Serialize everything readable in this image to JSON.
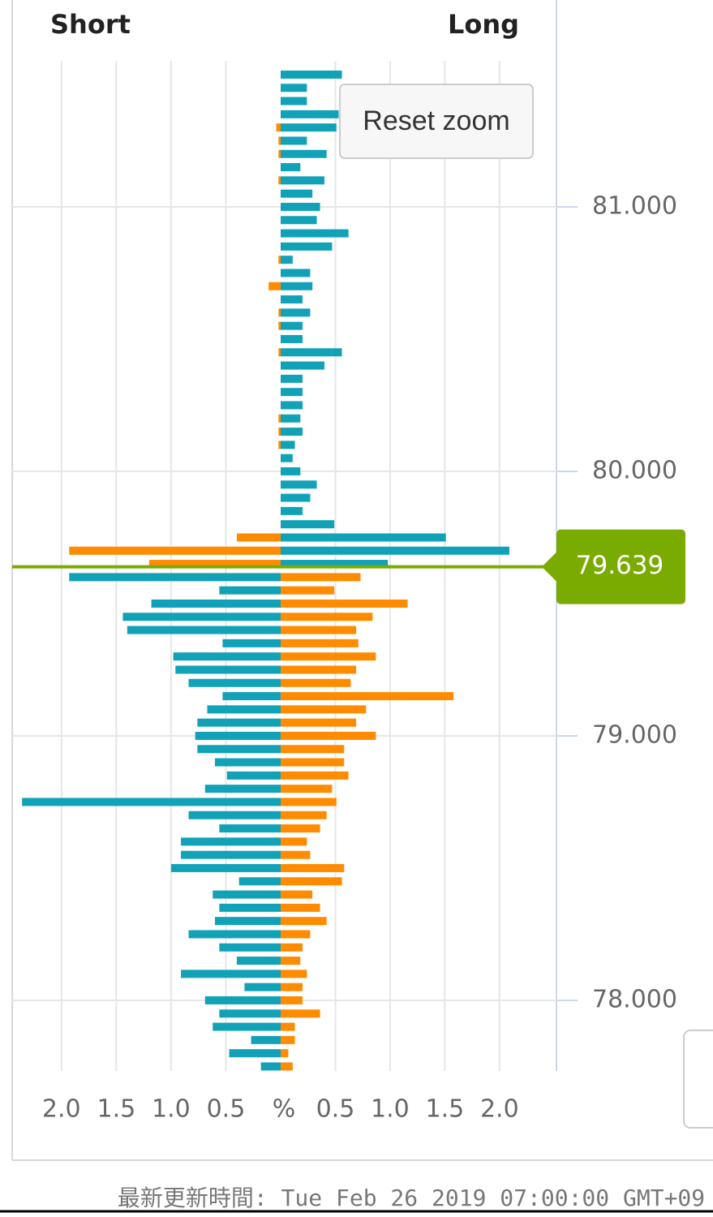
{
  "chart_data": {
    "type": "bar",
    "orientation": "horizontal",
    "prices": [
      81.5,
      81.45,
      81.4,
      81.35,
      81.3,
      81.25,
      81.2,
      81.15,
      81.1,
      81.05,
      81.0,
      80.95,
      80.9,
      80.85,
      80.8,
      80.75,
      80.7,
      80.65,
      80.6,
      80.55,
      80.5,
      80.45,
      80.4,
      80.35,
      80.3,
      80.25,
      80.2,
      80.15,
      80.1,
      80.05,
      80.0,
      79.95,
      79.9,
      79.85,
      79.8,
      79.75,
      79.7,
      79.65,
      79.6,
      79.55,
      79.5,
      79.45,
      79.4,
      79.35,
      79.3,
      79.25,
      79.2,
      79.15,
      79.1,
      79.05,
      79.0,
      78.95,
      78.9,
      78.85,
      78.8,
      78.75,
      78.7,
      78.65,
      78.6,
      78.55,
      78.5,
      78.45,
      78.4,
      78.35,
      78.3,
      78.25,
      78.2,
      78.15,
      78.1,
      78.05,
      78.0,
      77.95,
      77.9,
      77.85,
      77.8,
      77.75
    ],
    "series": [
      {
        "name": "Short",
        "side": "left",
        "color_above": "#ff8c00",
        "color_below": "#12a2b8",
        "values": [
          0,
          0,
          0,
          0,
          0.04,
          0.02,
          0.02,
          0,
          0.02,
          0,
          0,
          0,
          0,
          0,
          0.02,
          0,
          0.11,
          0,
          0.02,
          0.02,
          0,
          0.02,
          0,
          0,
          0,
          0,
          0.02,
          0.02,
          0.02,
          0,
          0,
          0,
          0,
          0,
          0,
          0.4,
          1.93,
          1.2,
          1.93,
          0.56,
          1.18,
          1.44,
          1.4,
          0.53,
          0.98,
          0.96,
          0.84,
          0.53,
          0.67,
          0.76,
          0.78,
          0.76,
          0.6,
          0.49,
          0.69,
          2.36,
          0.84,
          0.56,
          0.91,
          0.91,
          1.0,
          0.38,
          0.62,
          0.56,
          0.6,
          0.84,
          0.56,
          0.4,
          0.91,
          0.33,
          0.69,
          0.56,
          0.62,
          0.27,
          0.47,
          0.18
        ]
      },
      {
        "name": "Long",
        "side": "right",
        "color_above": "#12a2b8",
        "color_below": "#ff8c00",
        "values": [
          0.56,
          0.24,
          0.24,
          0.53,
          0.51,
          0.24,
          0.42,
          0.18,
          0.4,
          0.29,
          0.36,
          0.33,
          0.62,
          0.47,
          0.11,
          0.27,
          0.29,
          0.2,
          0.27,
          0.2,
          0.2,
          0.56,
          0.4,
          0.2,
          0.2,
          0.2,
          0.18,
          0.2,
          0.13,
          0.11,
          0.18,
          0.33,
          0.27,
          0.2,
          0.49,
          1.51,
          2.09,
          0.98,
          0.73,
          0.49,
          1.16,
          0.84,
          0.69,
          0.71,
          0.87,
          0.69,
          0.64,
          1.58,
          0.78,
          0.69,
          0.87,
          0.58,
          0.58,
          0.62,
          0.47,
          0.51,
          0.42,
          0.36,
          0.24,
          0.27,
          0.58,
          0.56,
          0.29,
          0.36,
          0.42,
          0.27,
          0.2,
          0.18,
          0.24,
          0.2,
          0.2,
          0.36,
          0.13,
          0.13,
          0.07,
          0.11
        ]
      }
    ],
    "current_price": 79.639,
    "price_color": "#7aab00",
    "short_xlim": [
      0,
      2.45
    ],
    "long_xlim": [
      0,
      2.52
    ],
    "short_ticks": [
      {
        "value": 2,
        "label": "2.0"
      },
      {
        "value": 1.5,
        "label": "1.5"
      },
      {
        "value": 1,
        "label": "1.0"
      },
      {
        "value": 0.5,
        "label": "0.5"
      }
    ],
    "long_ticks": [
      {
        "value": 0.5,
        "label": "0.5"
      },
      {
        "value": 1,
        "label": "1.0"
      },
      {
        "value": 1.5,
        "label": "1.5"
      },
      {
        "value": 2,
        "label": "2.0"
      }
    ],
    "center_label": "%",
    "ylim": [
      77.733,
      81.552
    ],
    "yticks": [
      {
        "value": 81,
        "label": "81.000"
      },
      {
        "value": 80,
        "label": "80.000"
      },
      {
        "value": 79,
        "label": "79.000"
      },
      {
        "value": 78,
        "label": "78.000"
      }
    ],
    "grid": true,
    "reset_button": "Reset zoom",
    "footer": "最新更新時間: Tue Feb 26 2019 07:00:00 GMT+09"
  }
}
